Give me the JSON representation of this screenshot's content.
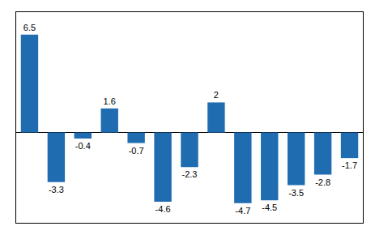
{
  "chart_data": {
    "type": "bar",
    "categories": [
      null,
      null,
      null,
      null,
      null,
      null,
      null,
      null,
      null,
      null,
      null,
      null,
      null
    ],
    "values": [
      6.5,
      -3.3,
      -0.4,
      1.6,
      -0.7,
      -4.6,
      -2.3,
      2.0,
      -4.7,
      -4.5,
      -3.5,
      -2.8,
      -1.7
    ],
    "color": "#1F6CB0",
    "ylim": [
      -6.0,
      8.0
    ],
    "grid": false,
    "data_labels": true,
    "tick_labels": false
  }
}
